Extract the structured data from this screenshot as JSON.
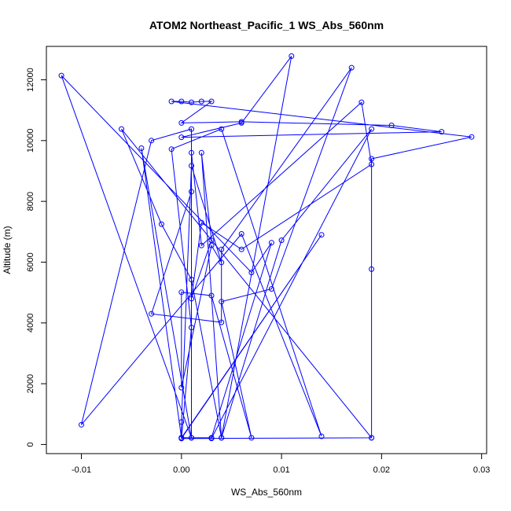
{
  "chart_data": {
    "type": "line",
    "title": "ATOM2 Northeast_Pacific_1 WS_Abs_560nm",
    "xlabel": "WS_Abs_560nm",
    "ylabel": "Altitude (m)",
    "xlim": [
      -0.0135,
      0.0305
    ],
    "ylim": [
      -300,
      13100
    ],
    "xticks": [
      -0.01,
      0.0,
      0.01,
      0.02,
      0.03
    ],
    "xtick_labels": [
      "-0.01",
      "0.00",
      "0.01",
      "0.02",
      "0.03"
    ],
    "yticks": [
      0,
      2000,
      4000,
      6000,
      8000,
      10000,
      12000
    ],
    "ytick_labels": [
      "0",
      "2000",
      "4000",
      "6000",
      "8000",
      "10000",
      "12000"
    ],
    "grid": false,
    "marker": "open-circle",
    "color": "#0000ff",
    "series": [
      {
        "x": [
          0.019,
          0.019,
          0.019,
          0.029,
          -0.001,
          0.0,
          0.001,
          0.002,
          0.003,
          0.0,
          0.006,
          0.021,
          0.026,
          0.0,
          0.006,
          0.011,
          0.004,
          0.002,
          0.003,
          0.001,
          0.002,
          0.006,
          0.019,
          0.018,
          0.002,
          0.001,
          0.001,
          -0.003,
          0.004,
          0.004,
          0.017,
          0.009,
          0.004,
          0.007,
          0.003,
          0.0,
          0.0,
          0.003,
          0.004,
          0.001,
          0.0,
          0.0,
          0.014,
          0.0,
          0.003,
          0.019,
          0.01,
          0.004,
          0.001,
          -0.002,
          -0.006,
          0.019,
          0.0,
          0.001,
          -0.001,
          0.004,
          0.014,
          0.006,
          -0.01,
          -0.003,
          0.001,
          0.001,
          -0.004,
          0.0,
          0.003,
          0.009,
          0.007,
          -0.012,
          0.001
        ],
        "y": [
          220,
          5770,
          9400,
          10120,
          11290,
          11290,
          11260,
          11290,
          11290,
          10580,
          10620,
          10500,
          10290,
          10110,
          10580,
          12780,
          220,
          9600,
          6720,
          4800,
          7300,
          6420,
          9220,
          11260,
          6550,
          9600,
          8320,
          4300,
          4020,
          6420,
          12400,
          5120,
          4700,
          220,
          4900,
          5010,
          1870,
          6550,
          5990,
          9170,
          740,
          220,
          6900,
          200,
          200,
          10380,
          6720,
          220,
          5430,
          7250,
          10380,
          220,
          200,
          3850,
          9720,
          10380,
          270,
          6930,
          650,
          10000,
          10380,
          220,
          9750,
          220,
          220,
          6640,
          5660,
          12140,
          220
        ]
      }
    ]
  }
}
